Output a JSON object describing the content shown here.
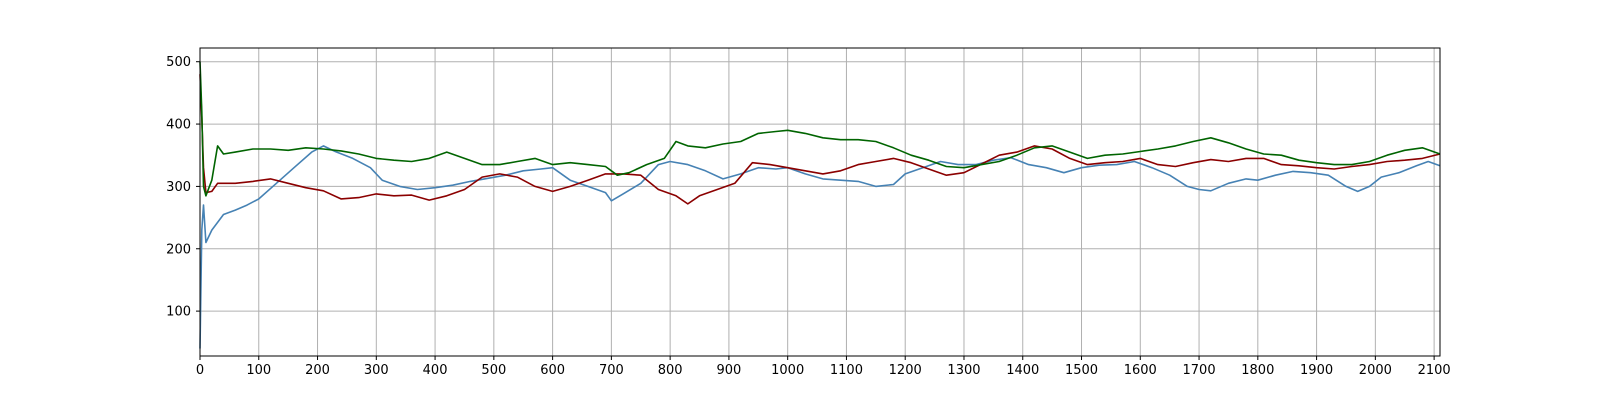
{
  "chart_data": {
    "type": "line",
    "title": "",
    "xlabel": "",
    "ylabel": "",
    "xlim": [
      0,
      2110
    ],
    "ylim": [
      28,
      522
    ],
    "grid": true,
    "x_ticks": [
      0,
      100,
      200,
      300,
      400,
      500,
      600,
      700,
      800,
      900,
      1000,
      1100,
      1200,
      1300,
      1400,
      1500,
      1600,
      1700,
      1800,
      1900,
      2000,
      2100
    ],
    "y_ticks": [
      100,
      200,
      300,
      400,
      500
    ],
    "series": [
      {
        "color": "#4682b4",
        "points": [
          [
            0,
            40
          ],
          [
            3,
            230
          ],
          [
            6,
            270
          ],
          [
            10,
            210
          ],
          [
            20,
            230
          ],
          [
            40,
            255
          ],
          [
            60,
            262
          ],
          [
            80,
            270
          ],
          [
            100,
            280
          ],
          [
            130,
            305
          ],
          [
            160,
            330
          ],
          [
            190,
            355
          ],
          [
            210,
            365
          ],
          [
            230,
            356
          ],
          [
            260,
            345
          ],
          [
            290,
            330
          ],
          [
            310,
            310
          ],
          [
            340,
            300
          ],
          [
            370,
            295
          ],
          [
            400,
            298
          ],
          [
            430,
            302
          ],
          [
            460,
            308
          ],
          [
            490,
            313
          ],
          [
            520,
            318
          ],
          [
            550,
            325
          ],
          [
            580,
            328
          ],
          [
            600,
            330
          ],
          [
            630,
            310
          ],
          [
            660,
            300
          ],
          [
            690,
            290
          ],
          [
            700,
            277
          ],
          [
            720,
            288
          ],
          [
            750,
            305
          ],
          [
            780,
            335
          ],
          [
            800,
            340
          ],
          [
            830,
            335
          ],
          [
            860,
            325
          ],
          [
            890,
            312
          ],
          [
            920,
            320
          ],
          [
            950,
            330
          ],
          [
            980,
            328
          ],
          [
            1000,
            330
          ],
          [
            1030,
            320
          ],
          [
            1060,
            312
          ],
          [
            1090,
            310
          ],
          [
            1120,
            308
          ],
          [
            1150,
            300
          ],
          [
            1180,
            303
          ],
          [
            1200,
            320
          ],
          [
            1230,
            330
          ],
          [
            1260,
            340
          ],
          [
            1290,
            335
          ],
          [
            1320,
            335
          ],
          [
            1350,
            342
          ],
          [
            1380,
            346
          ],
          [
            1410,
            335
          ],
          [
            1440,
            330
          ],
          [
            1470,
            322
          ],
          [
            1500,
            330
          ],
          [
            1530,
            334
          ],
          [
            1560,
            335
          ],
          [
            1590,
            340
          ],
          [
            1620,
            330
          ],
          [
            1650,
            318
          ],
          [
            1680,
            300
          ],
          [
            1700,
            295
          ],
          [
            1720,
            293
          ],
          [
            1750,
            305
          ],
          [
            1780,
            312
          ],
          [
            1800,
            310
          ],
          [
            1830,
            318
          ],
          [
            1860,
            324
          ],
          [
            1890,
            322
          ],
          [
            1920,
            318
          ],
          [
            1950,
            300
          ],
          [
            1970,
            292
          ],
          [
            1990,
            300
          ],
          [
            2010,
            315
          ],
          [
            2040,
            322
          ],
          [
            2070,
            333
          ],
          [
            2090,
            340
          ],
          [
            2110,
            333
          ]
        ]
      },
      {
        "color": "#8b0000",
        "points": [
          [
            0,
            480
          ],
          [
            3,
            410
          ],
          [
            6,
            330
          ],
          [
            10,
            290
          ],
          [
            20,
            292
          ],
          [
            30,
            305
          ],
          [
            60,
            305
          ],
          [
            90,
            308
          ],
          [
            120,
            312
          ],
          [
            150,
            305
          ],
          [
            180,
            298
          ],
          [
            210,
            293
          ],
          [
            240,
            280
          ],
          [
            270,
            282
          ],
          [
            300,
            288
          ],
          [
            330,
            285
          ],
          [
            360,
            286
          ],
          [
            390,
            278
          ],
          [
            420,
            285
          ],
          [
            450,
            295
          ],
          [
            480,
            315
          ],
          [
            510,
            320
          ],
          [
            540,
            315
          ],
          [
            570,
            300
          ],
          [
            600,
            292
          ],
          [
            630,
            300
          ],
          [
            660,
            310
          ],
          [
            690,
            320
          ],
          [
            720,
            320
          ],
          [
            750,
            318
          ],
          [
            780,
            295
          ],
          [
            810,
            285
          ],
          [
            830,
            272
          ],
          [
            850,
            285
          ],
          [
            880,
            295
          ],
          [
            910,
            305
          ],
          [
            940,
            338
          ],
          [
            970,
            335
          ],
          [
            1000,
            330
          ],
          [
            1030,
            325
          ],
          [
            1060,
            320
          ],
          [
            1090,
            325
          ],
          [
            1120,
            335
          ],
          [
            1150,
            340
          ],
          [
            1180,
            345
          ],
          [
            1210,
            338
          ],
          [
            1240,
            328
          ],
          [
            1270,
            318
          ],
          [
            1300,
            322
          ],
          [
            1330,
            336
          ],
          [
            1360,
            350
          ],
          [
            1390,
            355
          ],
          [
            1420,
            365
          ],
          [
            1450,
            360
          ],
          [
            1480,
            345
          ],
          [
            1510,
            335
          ],
          [
            1540,
            338
          ],
          [
            1570,
            340
          ],
          [
            1600,
            345
          ],
          [
            1630,
            335
          ],
          [
            1660,
            332
          ],
          [
            1690,
            338
          ],
          [
            1720,
            343
          ],
          [
            1750,
            340
          ],
          [
            1780,
            345
          ],
          [
            1810,
            345
          ],
          [
            1840,
            335
          ],
          [
            1870,
            333
          ],
          [
            1900,
            330
          ],
          [
            1930,
            328
          ],
          [
            1960,
            332
          ],
          [
            1990,
            335
          ],
          [
            2020,
            340
          ],
          [
            2050,
            342
          ],
          [
            2080,
            345
          ],
          [
            2110,
            352
          ]
        ]
      },
      {
        "color": "#006400",
        "points": [
          [
            0,
            500
          ],
          [
            3,
            420
          ],
          [
            6,
            300
          ],
          [
            10,
            285
          ],
          [
            20,
            310
          ],
          [
            30,
            365
          ],
          [
            40,
            352
          ],
          [
            60,
            355
          ],
          [
            90,
            360
          ],
          [
            120,
            360
          ],
          [
            150,
            358
          ],
          [
            180,
            362
          ],
          [
            210,
            360
          ],
          [
            240,
            357
          ],
          [
            270,
            352
          ],
          [
            300,
            345
          ],
          [
            330,
            342
          ],
          [
            360,
            340
          ],
          [
            390,
            345
          ],
          [
            420,
            355
          ],
          [
            450,
            345
          ],
          [
            480,
            335
          ],
          [
            510,
            335
          ],
          [
            540,
            340
          ],
          [
            570,
            345
          ],
          [
            600,
            335
          ],
          [
            630,
            338
          ],
          [
            660,
            335
          ],
          [
            690,
            332
          ],
          [
            710,
            318
          ],
          [
            730,
            322
          ],
          [
            760,
            335
          ],
          [
            790,
            345
          ],
          [
            810,
            372
          ],
          [
            830,
            365
          ],
          [
            860,
            362
          ],
          [
            890,
            368
          ],
          [
            920,
            372
          ],
          [
            950,
            385
          ],
          [
            980,
            388
          ],
          [
            1000,
            390
          ],
          [
            1030,
            385
          ],
          [
            1060,
            378
          ],
          [
            1090,
            375
          ],
          [
            1120,
            375
          ],
          [
            1150,
            372
          ],
          [
            1180,
            362
          ],
          [
            1210,
            350
          ],
          [
            1240,
            342
          ],
          [
            1270,
            332
          ],
          [
            1300,
            330
          ],
          [
            1330,
            335
          ],
          [
            1360,
            340
          ],
          [
            1390,
            350
          ],
          [
            1420,
            362
          ],
          [
            1450,
            365
          ],
          [
            1480,
            355
          ],
          [
            1510,
            345
          ],
          [
            1540,
            350
          ],
          [
            1570,
            352
          ],
          [
            1600,
            356
          ],
          [
            1630,
            360
          ],
          [
            1660,
            365
          ],
          [
            1690,
            372
          ],
          [
            1720,
            378
          ],
          [
            1750,
            370
          ],
          [
            1780,
            360
          ],
          [
            1810,
            352
          ],
          [
            1840,
            350
          ],
          [
            1870,
            342
          ],
          [
            1900,
            338
          ],
          [
            1930,
            335
          ],
          [
            1960,
            335
          ],
          [
            1990,
            340
          ],
          [
            2020,
            350
          ],
          [
            2050,
            358
          ],
          [
            2080,
            362
          ],
          [
            2110,
            352
          ]
        ]
      }
    ]
  }
}
